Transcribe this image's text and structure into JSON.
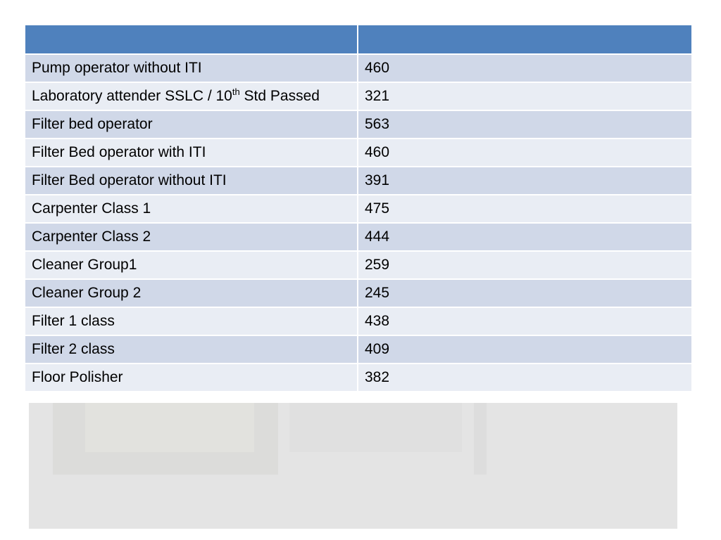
{
  "table": {
    "header": [
      "",
      ""
    ],
    "rows": [
      {
        "label": "Pump operator without ITI",
        "value": "460"
      },
      {
        "label_pre": "Laboratory attender SSLC / 10",
        "label_sup": "th",
        "label_post": " Std Passed",
        "value": "321"
      },
      {
        "label": "Filter bed operator",
        "value": "563"
      },
      {
        "label": "Filter Bed operator with ITI",
        "value": "460"
      },
      {
        "label": "Filter Bed operator without ITI",
        "value": "391"
      },
      {
        "label": "Carpenter Class 1",
        "value": "475"
      },
      {
        "label": "Carpenter Class 2",
        "value": "444"
      },
      {
        "label": "Cleaner Group1",
        "value": "259"
      },
      {
        "label": "Cleaner Group 2",
        "value": "245"
      },
      {
        "label": "Filter 1 class",
        "value": "438"
      },
      {
        "label": "Filter 2 class",
        "value": "409"
      },
      {
        "label": "Floor Polisher",
        "value": "382"
      }
    ]
  },
  "colors": {
    "header_bg": "#4f81bd",
    "row_odd_bg": "#d0d8e8",
    "row_even_bg": "#e9edf4"
  }
}
